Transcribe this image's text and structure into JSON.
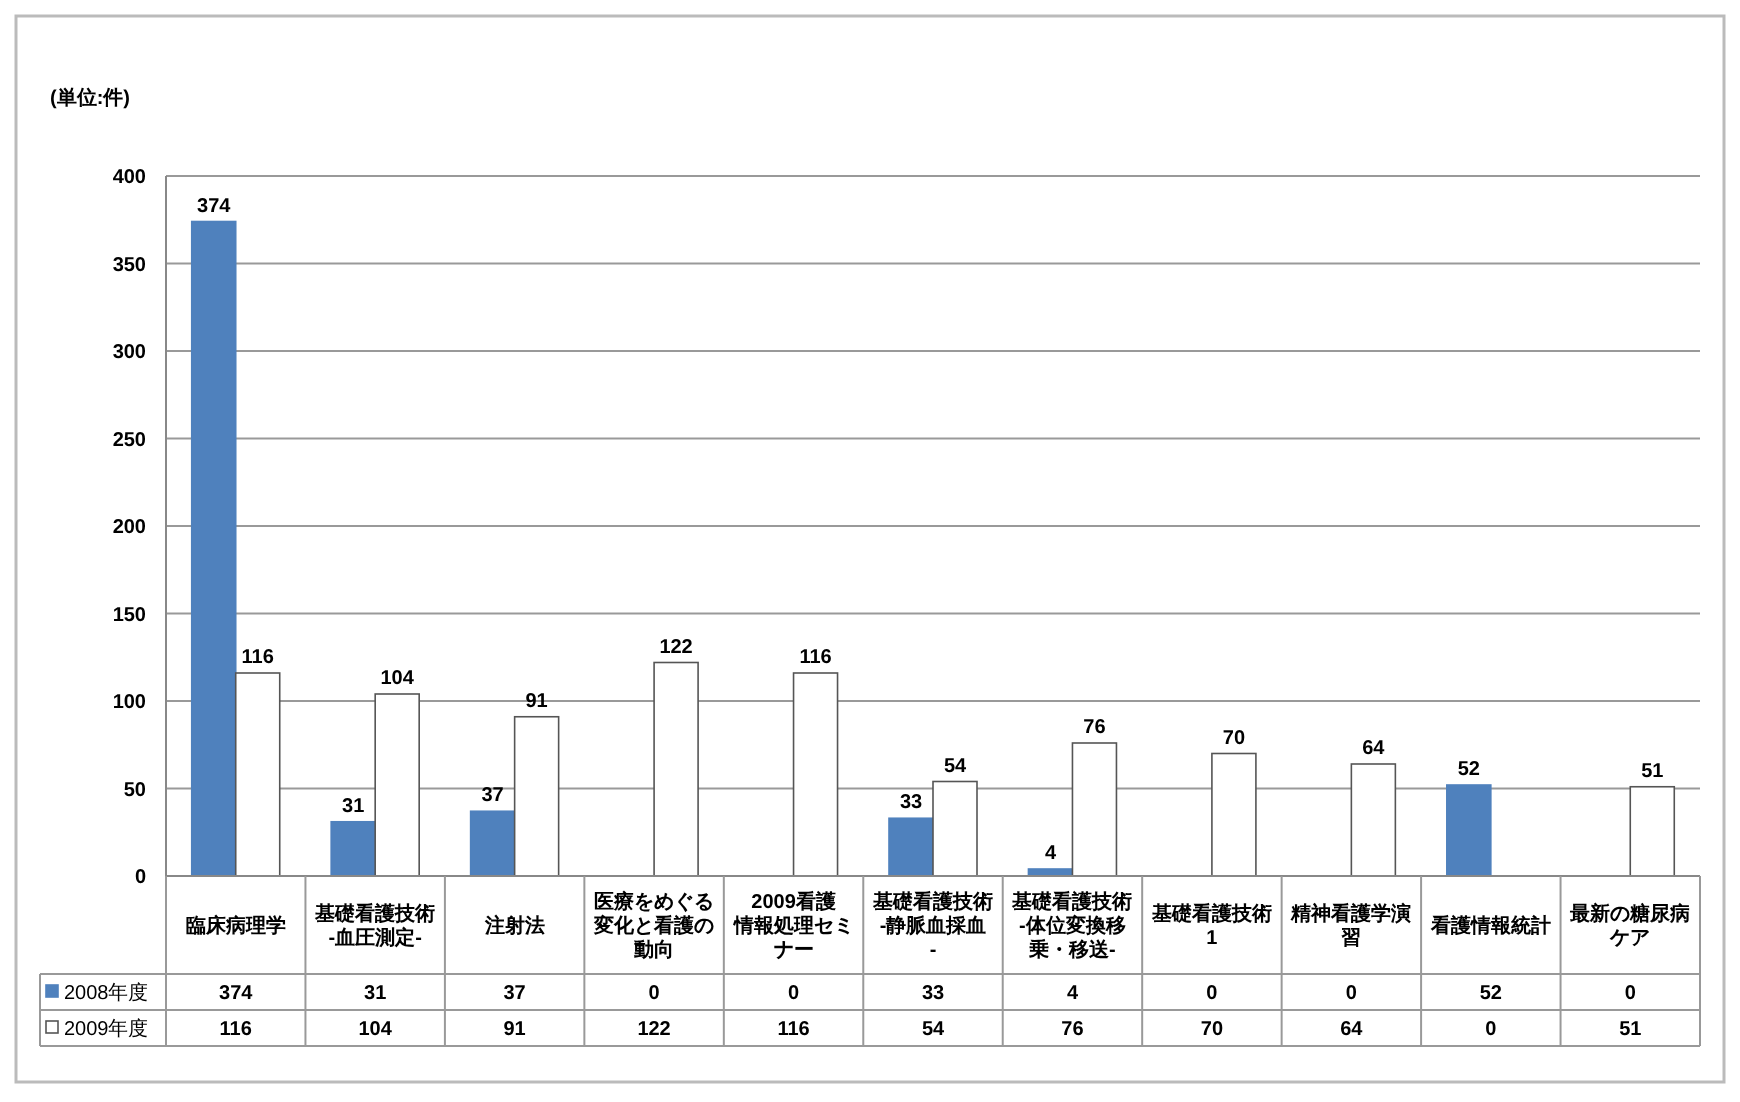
{
  "chart_data": {
    "type": "bar",
    "title": "(単位:件)",
    "categories": [
      "臨床病理学",
      "基礎看護技術-血圧測定-",
      "注射法",
      "医療をめぐる変化と看護の動向",
      "2009看護情報処理セミナー",
      "基礎看護技術-静脈血採血-",
      "基礎看護技術-体位変換移乗・移送-",
      "基礎看護技術1",
      "精神看護学演習",
      "看護情報統計",
      "最新の糖尿病ケア"
    ],
    "series": [
      {
        "name": "2008年度",
        "color": "#4f81bd",
        "values": [
          374,
          31,
          37,
          0,
          0,
          33,
          4,
          0,
          0,
          52,
          0
        ],
        "value_labels": [
          "374",
          "31",
          "37",
          "0",
          "0",
          "33",
          "4",
          "0",
          "0",
          "52",
          "0"
        ]
      },
      {
        "name": "2009年度",
        "color": "#ffffff",
        "values": [
          116,
          104,
          91,
          122,
          116,
          54,
          76,
          70,
          64,
          0,
          51
        ],
        "value_labels": [
          "116",
          "104",
          "91",
          "122",
          "116",
          "54",
          "76",
          "70",
          "64",
          "0",
          "51"
        ]
      }
    ],
    "ylim": [
      0,
      400
    ],
    "yticks": [
      0,
      50,
      100,
      150,
      200,
      250,
      300,
      350,
      400
    ],
    "grid": "y",
    "legend": "bottom left"
  }
}
